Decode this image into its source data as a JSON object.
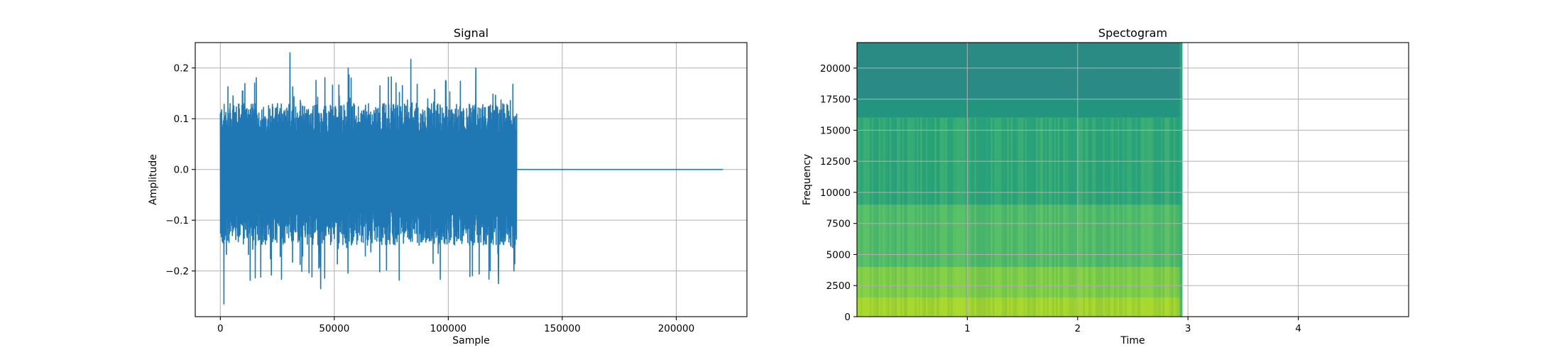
{
  "chart_data": [
    {
      "type": "line",
      "title": "Signal",
      "xlabel": "Sample",
      "ylabel": "Amplitude",
      "xlim": [
        -11000,
        231000
      ],
      "ylim": [
        -0.29,
        0.25
      ],
      "xticks": [
        0,
        50000,
        100000,
        150000,
        200000
      ],
      "xtick_labels": [
        "0",
        "50000",
        "100000",
        "150000",
        "200000"
      ],
      "yticks": [
        -0.2,
        -0.1,
        0.0,
        0.1,
        0.2
      ],
      "ytick_labels": [
        "−0.2",
        "−0.1",
        "0.0",
        "0.1",
        "0.2"
      ],
      "grid": true,
      "series_color": "#1f77b4",
      "signal": {
        "active_range": [
          0,
          130000
        ],
        "silence_range": [
          130000,
          220500
        ],
        "typical_envelope": [
          -0.15,
          0.13
        ],
        "max": 0.23,
        "min": -0.265,
        "peaks": [
          {
            "x": 1500,
            "y": -0.265
          },
          {
            "x": 30500,
            "y": 0.23
          },
          {
            "x": 83500,
            "y": 0.217
          },
          {
            "x": 112000,
            "y": 0.2
          },
          {
            "x": 44000,
            "y": -0.235
          },
          {
            "x": 122000,
            "y": -0.225
          },
          {
            "x": 56000,
            "y": 0.2
          }
        ]
      }
    },
    {
      "type": "heatmap",
      "title": "Spectogram",
      "xlabel": "Time",
      "ylabel": "Frequency",
      "xlim": [
        0.0,
        5.0
      ],
      "ylim": [
        0,
        22050
      ],
      "xticks": [
        1,
        2,
        3,
        4
      ],
      "xtick_labels": [
        "1",
        "2",
        "3",
        "4"
      ],
      "yticks": [
        0,
        2500,
        5000,
        7500,
        10000,
        12500,
        15000,
        17500,
        20000
      ],
      "ytick_labels": [
        "0",
        "2500",
        "5000",
        "7500",
        "10000",
        "12500",
        "15000",
        "17500",
        "20000"
      ],
      "grid": true,
      "colormap": "viridis",
      "data_time_extent": [
        0.0,
        2.95
      ],
      "frequency_bands": [
        {
          "from": 0,
          "to": 1500,
          "color": "#a6d82c"
        },
        {
          "from": 1500,
          "to": 4000,
          "color": "#7fcf48"
        },
        {
          "from": 4000,
          "to": 9000,
          "color": "#4fbd6a"
        },
        {
          "from": 9000,
          "to": 16000,
          "color": "#2ba77a"
        },
        {
          "from": 16000,
          "to": 17500,
          "color": "#23957f"
        },
        {
          "from": 17500,
          "to": 22050,
          "color": "#2a8a84"
        }
      ]
    }
  ]
}
